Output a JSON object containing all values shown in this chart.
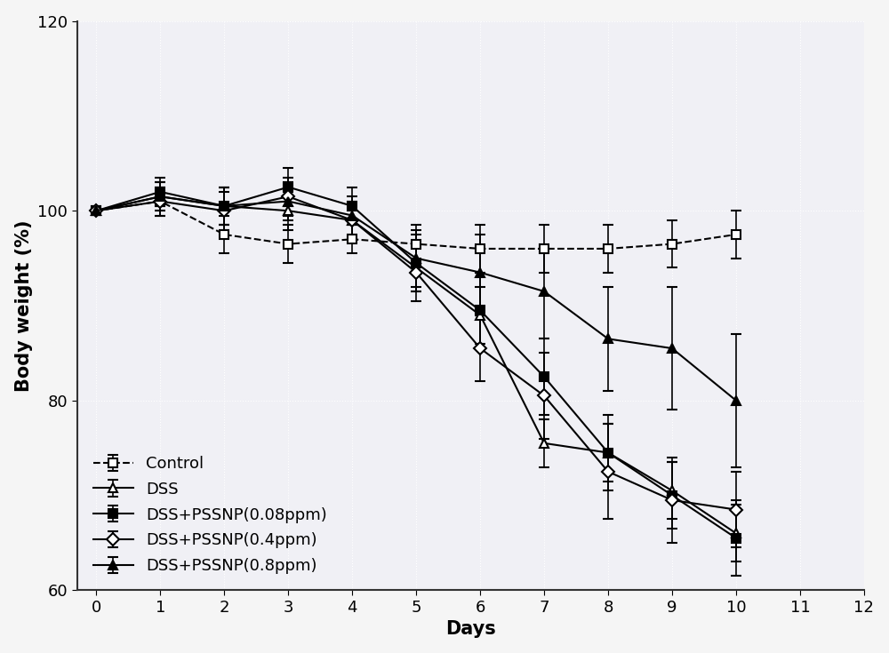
{
  "days": [
    0,
    1,
    2,
    3,
    4,
    5,
    6,
    7,
    8,
    9,
    10
  ],
  "control": {
    "y": [
      100,
      101.0,
      97.5,
      96.5,
      97.0,
      96.5,
      96.0,
      96.0,
      96.0,
      96.5,
      97.5
    ],
    "yerr": [
      0,
      1.5,
      2.0,
      2.0,
      1.5,
      2.0,
      2.5,
      2.5,
      2.5,
      2.5,
      2.5
    ],
    "label": "Control",
    "linestyle": "--",
    "marker": "s",
    "fillstyle": "none"
  },
  "dss": {
    "y": [
      100,
      101.5,
      100.5,
      100.0,
      99.0,
      94.0,
      89.0,
      75.5,
      74.5,
      70.5,
      66.0
    ],
    "yerr": [
      0,
      1.5,
      2.0,
      2.0,
      2.0,
      2.5,
      3.0,
      2.5,
      3.0,
      3.0,
      3.0
    ],
    "label": "DSS",
    "linestyle": "-",
    "marker": "^",
    "fillstyle": "none"
  },
  "dss_008": {
    "y": [
      100,
      102.0,
      100.5,
      102.5,
      100.5,
      94.5,
      89.5,
      82.5,
      74.5,
      70.0,
      65.5
    ],
    "yerr": [
      0,
      1.5,
      2.0,
      2.0,
      2.0,
      3.0,
      4.0,
      4.0,
      4.0,
      3.5,
      4.0
    ],
    "label": "DSS+PSSNP(0.08ppm)",
    "linestyle": "-",
    "marker": "s",
    "fillstyle": "full"
  },
  "dss_04": {
    "y": [
      100,
      101.0,
      100.0,
      101.5,
      99.0,
      93.5,
      85.5,
      80.5,
      72.5,
      69.5,
      68.5
    ],
    "yerr": [
      0,
      1.5,
      2.0,
      2.0,
      2.0,
      3.0,
      3.5,
      4.5,
      5.0,
      4.5,
      4.0
    ],
    "label": "DSS+PSSNP(0.4ppm)",
    "linestyle": "-",
    "marker": "D",
    "fillstyle": "none"
  },
  "dss_08": {
    "y": [
      100,
      101.5,
      100.5,
      101.0,
      99.5,
      95.0,
      93.5,
      91.5,
      86.5,
      85.5,
      80.0
    ],
    "yerr": [
      0,
      1.5,
      2.0,
      2.0,
      2.0,
      3.0,
      4.0,
      5.0,
      5.5,
      6.5,
      7.0
    ],
    "label": "DSS+PSSNP(0.8ppm)",
    "linestyle": "-",
    "marker": "^",
    "fillstyle": "full"
  },
  "xlabel": "Days",
  "ylabel": "Body weight (%)",
  "xlim": [
    -0.3,
    12
  ],
  "ylim": [
    60,
    120
  ],
  "yticks": [
    60,
    80,
    100,
    120
  ],
  "xticks": [
    0,
    1,
    2,
    3,
    4,
    5,
    6,
    7,
    8,
    9,
    10,
    11,
    12
  ],
  "line_color": "#000000",
  "background_color": "#f5f5f5",
  "plot_bg_color": "#f0f0f5",
  "legend_loc": "lower left",
  "fontsize": 13
}
